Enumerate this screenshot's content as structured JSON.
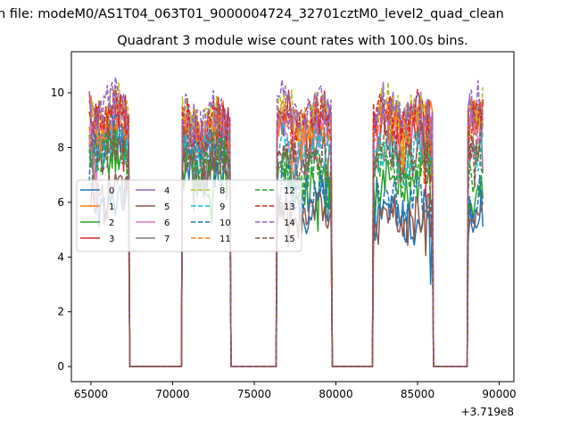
{
  "suptitle": "n file: modeM0/AS1T04_063T01_9000004724_32701cztM0_level2_quad_clean",
  "chart_data": {
    "type": "line",
    "title": "Quadrant 3 module wise count rates with 100.0s bins.",
    "xlabel": "",
    "ylabel": "",
    "x_offset_label": "+3.719e8",
    "xlim": [
      63800,
      90900
    ],
    "ylim": [
      -0.55,
      11.5
    ],
    "x_ticks": [
      65000,
      70000,
      75000,
      80000,
      85000,
      90000
    ],
    "x_tick_labels": [
      "65000",
      "70000",
      "75000",
      "80000",
      "85000",
      "90000"
    ],
    "y_ticks": [
      0,
      2,
      4,
      6,
      8,
      10
    ],
    "y_tick_labels": [
      "0",
      "2",
      "4",
      "6",
      "8",
      "10"
    ],
    "grid": false,
    "legend_placement": "center-left",
    "segments": [
      {
        "x0": 64900,
        "x1": 67300
      },
      {
        "x0": 70600,
        "x1": 73500
      },
      {
        "x0": 76400,
        "x1": 79700
      },
      {
        "x0": 82300,
        "x1": 85900
      },
      {
        "x0": 88100,
        "x1": 89000
      }
    ],
    "series": [
      {
        "name": "0",
        "color": "#1f77b4",
        "dash": "solid",
        "levels": [
          6.0,
          7.2,
          5.8,
          5.5,
          5.9
        ]
      },
      {
        "name": "1",
        "color": "#ff7f0e",
        "dash": "solid",
        "levels": [
          8.9,
          8.7,
          8.9,
          8.9,
          9.3
        ]
      },
      {
        "name": "2",
        "color": "#2ca02c",
        "dash": "solid",
        "levels": [
          7.6,
          7.0,
          6.8,
          6.6,
          6.4
        ]
      },
      {
        "name": "3",
        "color": "#d62728",
        "dash": "solid",
        "levels": [
          9.1,
          8.7,
          9.0,
          9.0,
          9.3
        ]
      },
      {
        "name": "4",
        "color": "#9467bd",
        "dash": "solid",
        "levels": [
          9.0,
          8.6,
          9.0,
          9.2,
          9.4
        ]
      },
      {
        "name": "5",
        "color": "#8c564b",
        "dash": "solid",
        "levels": [
          6.3,
          7.6,
          5.6,
          5.4,
          5.6
        ]
      },
      {
        "name": "6",
        "color": "#e377c2",
        "dash": "solid",
        "levels": [
          8.4,
          8.2,
          8.4,
          8.6,
          8.9
        ]
      },
      {
        "name": "7",
        "color": "#7f7f7f",
        "dash": "solid",
        "levels": [
          8.0,
          7.6,
          7.7,
          7.8,
          8.1
        ]
      },
      {
        "name": "8",
        "color": "#bcbd22",
        "dash": "dashed",
        "levels": [
          9.3,
          8.9,
          9.2,
          9.3,
          9.6
        ]
      },
      {
        "name": "9",
        "color": "#17becf",
        "dash": "dashed",
        "levels": [
          8.0,
          7.9,
          7.8,
          7.7,
          8.0
        ]
      },
      {
        "name": "10",
        "color": "#1f77b4",
        "dash": "dashed",
        "levels": [
          8.3,
          8.1,
          6.4,
          6.1,
          6.2
        ]
      },
      {
        "name": "11",
        "color": "#ff7f0e",
        "dash": "dashed",
        "levels": [
          8.8,
          8.5,
          8.7,
          8.8,
          9.1
        ]
      },
      {
        "name": "12",
        "color": "#2ca02c",
        "dash": "dashed",
        "levels": [
          7.9,
          7.6,
          7.0,
          7.3,
          7.4
        ]
      },
      {
        "name": "13",
        "color": "#d62728",
        "dash": "dashed",
        "levels": [
          9.2,
          8.8,
          8.9,
          9.0,
          9.3
        ]
      },
      {
        "name": "14",
        "color": "#9467bd",
        "dash": "dashed",
        "levels": [
          9.5,
          9.1,
          9.4,
          9.3,
          9.6
        ]
      },
      {
        "name": "15",
        "color": "#8c564b",
        "dash": "dashed",
        "levels": [
          7.8,
          7.5,
          7.7,
          7.9,
          8.2
        ]
      }
    ]
  }
}
